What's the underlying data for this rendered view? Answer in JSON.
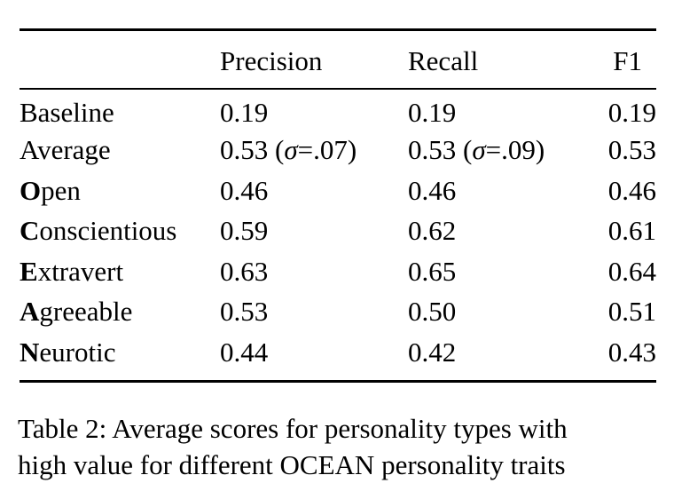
{
  "table": {
    "headers": [
      "",
      "Precision",
      "Recall",
      "F1"
    ],
    "rows": [
      {
        "label_bold": "",
        "label_rest": "Baseline",
        "precision": "0.19",
        "recall": "0.19",
        "f1": "0.19"
      },
      {
        "label_bold": "",
        "label_rest": "Average",
        "precision": "0.53 (",
        "precision_sigma": "σ",
        "precision_tail": "=.07)",
        "recall": "0.53 (",
        "recall_sigma": "σ",
        "recall_tail": "=.09)",
        "f1": "0.53"
      },
      {
        "label_bold": "O",
        "label_rest": "pen",
        "precision": "0.46",
        "recall": "0.46",
        "f1": "0.46"
      },
      {
        "label_bold": "C",
        "label_rest": "onscientious",
        "precision": "0.59",
        "recall": "0.62",
        "f1": "0.61"
      },
      {
        "label_bold": "E",
        "label_rest": "xtravert",
        "precision": "0.63",
        "recall": "0.65",
        "f1": "0.64"
      },
      {
        "label_bold": "A",
        "label_rest": "greeable",
        "precision": "0.53",
        "recall": "0.50",
        "f1": "0.51"
      },
      {
        "label_bold": "N",
        "label_rest": "eurotic",
        "precision": "0.44",
        "recall": "0.42",
        "f1": "0.43"
      }
    ]
  },
  "caption": {
    "line1": "Table 2: Average scores for personality types with",
    "line2": "high value for different OCEAN personality traits"
  }
}
